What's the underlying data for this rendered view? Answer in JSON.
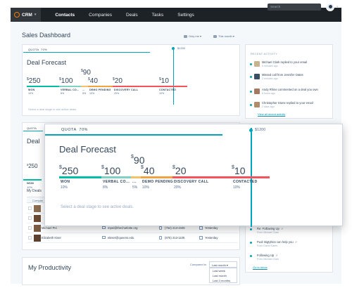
{
  "nav": {
    "brand": "CRM",
    "items": [
      "Contacts",
      "Companies",
      "Deals",
      "Tasks",
      "Settings"
    ],
    "search_placeholder": "Search"
  },
  "page": {
    "title": "Sales Dashboard",
    "filter_owner": "Only me",
    "filter_period": "This month"
  },
  "forecast": {
    "quota_label": "QUOTA",
    "quota_pct": "70%",
    "cap": "$1200",
    "title": "Deal Forecast",
    "hint": "Select a deal stage to see active deals.",
    "currency": "$",
    "stages": [
      {
        "value": "250",
        "label": "WON",
        "pct": "10%",
        "color": "#00bda5"
      },
      {
        "value": "100",
        "label": "VERBAL CO...",
        "pct": "8%",
        "color": "#7fd1c3"
      },
      {
        "value": "90",
        "label": "...",
        "pct": "5%",
        "color": "#f5c26b"
      },
      {
        "value": "40",
        "label": "DEMO PENDING",
        "pct": "10%",
        "color": "#f2a341"
      },
      {
        "value": "20",
        "label": "DISCOVERY CALL",
        "pct": "20%",
        "color": "#f2545b"
      },
      {
        "value": "10",
        "label": "CONTACTED",
        "pct": "10%",
        "color": "#f2545b"
      }
    ]
  },
  "recent_activity": {
    "title": "RECENT ACTIVITY",
    "items": [
      {
        "text": "Michael Clark replied to your email",
        "time": "5 minutes ago"
      },
      {
        "text": "Missed call from Jennifer Oates",
        "time": "2 minutes ago"
      },
      {
        "text": "Andy Rhine commented on a deal you own",
        "time": "8 hours ago"
      },
      {
        "text": "Christopher Stone replied to your email",
        "time": "2 days ago"
      }
    ],
    "view_all": "View all recent activity"
  },
  "second_card": {
    "quota_label": "QUOTA",
    "title": "Deal",
    "value": "250",
    "won_label": "WON",
    "won_pct": "10%"
  },
  "my_deals": {
    "title": "My Deals",
    "header": "Compan",
    "rows": [
      {
        "name": "Michael Pei",
        "email": "mpei@thecharlotte.org",
        "phone": "(754) 213-2345",
        "date": "Yesterday"
      },
      {
        "name": "Elizabeth Kiser",
        "email": "ekiser@queens.edu",
        "phone": "(875) 213-1105",
        "date": "Yesterday"
      }
    ]
  },
  "followups": [
    {
      "text": "Re: Following Up",
      "from": "From Michael Clark"
    },
    {
      "text": "Fwd: Bigtyltics can help you",
      "from": "From David Oates"
    },
    {
      "text": "Following Up",
      "from": "From Michael Clark"
    }
  ],
  "go_inbox": "Go to Inbox",
  "productivity": {
    "title": "My Productivity",
    "compared_to": "Compared to",
    "selected": "Last month",
    "options": [
      "Last week",
      "Last month",
      "Last 3 months"
    ]
  }
}
